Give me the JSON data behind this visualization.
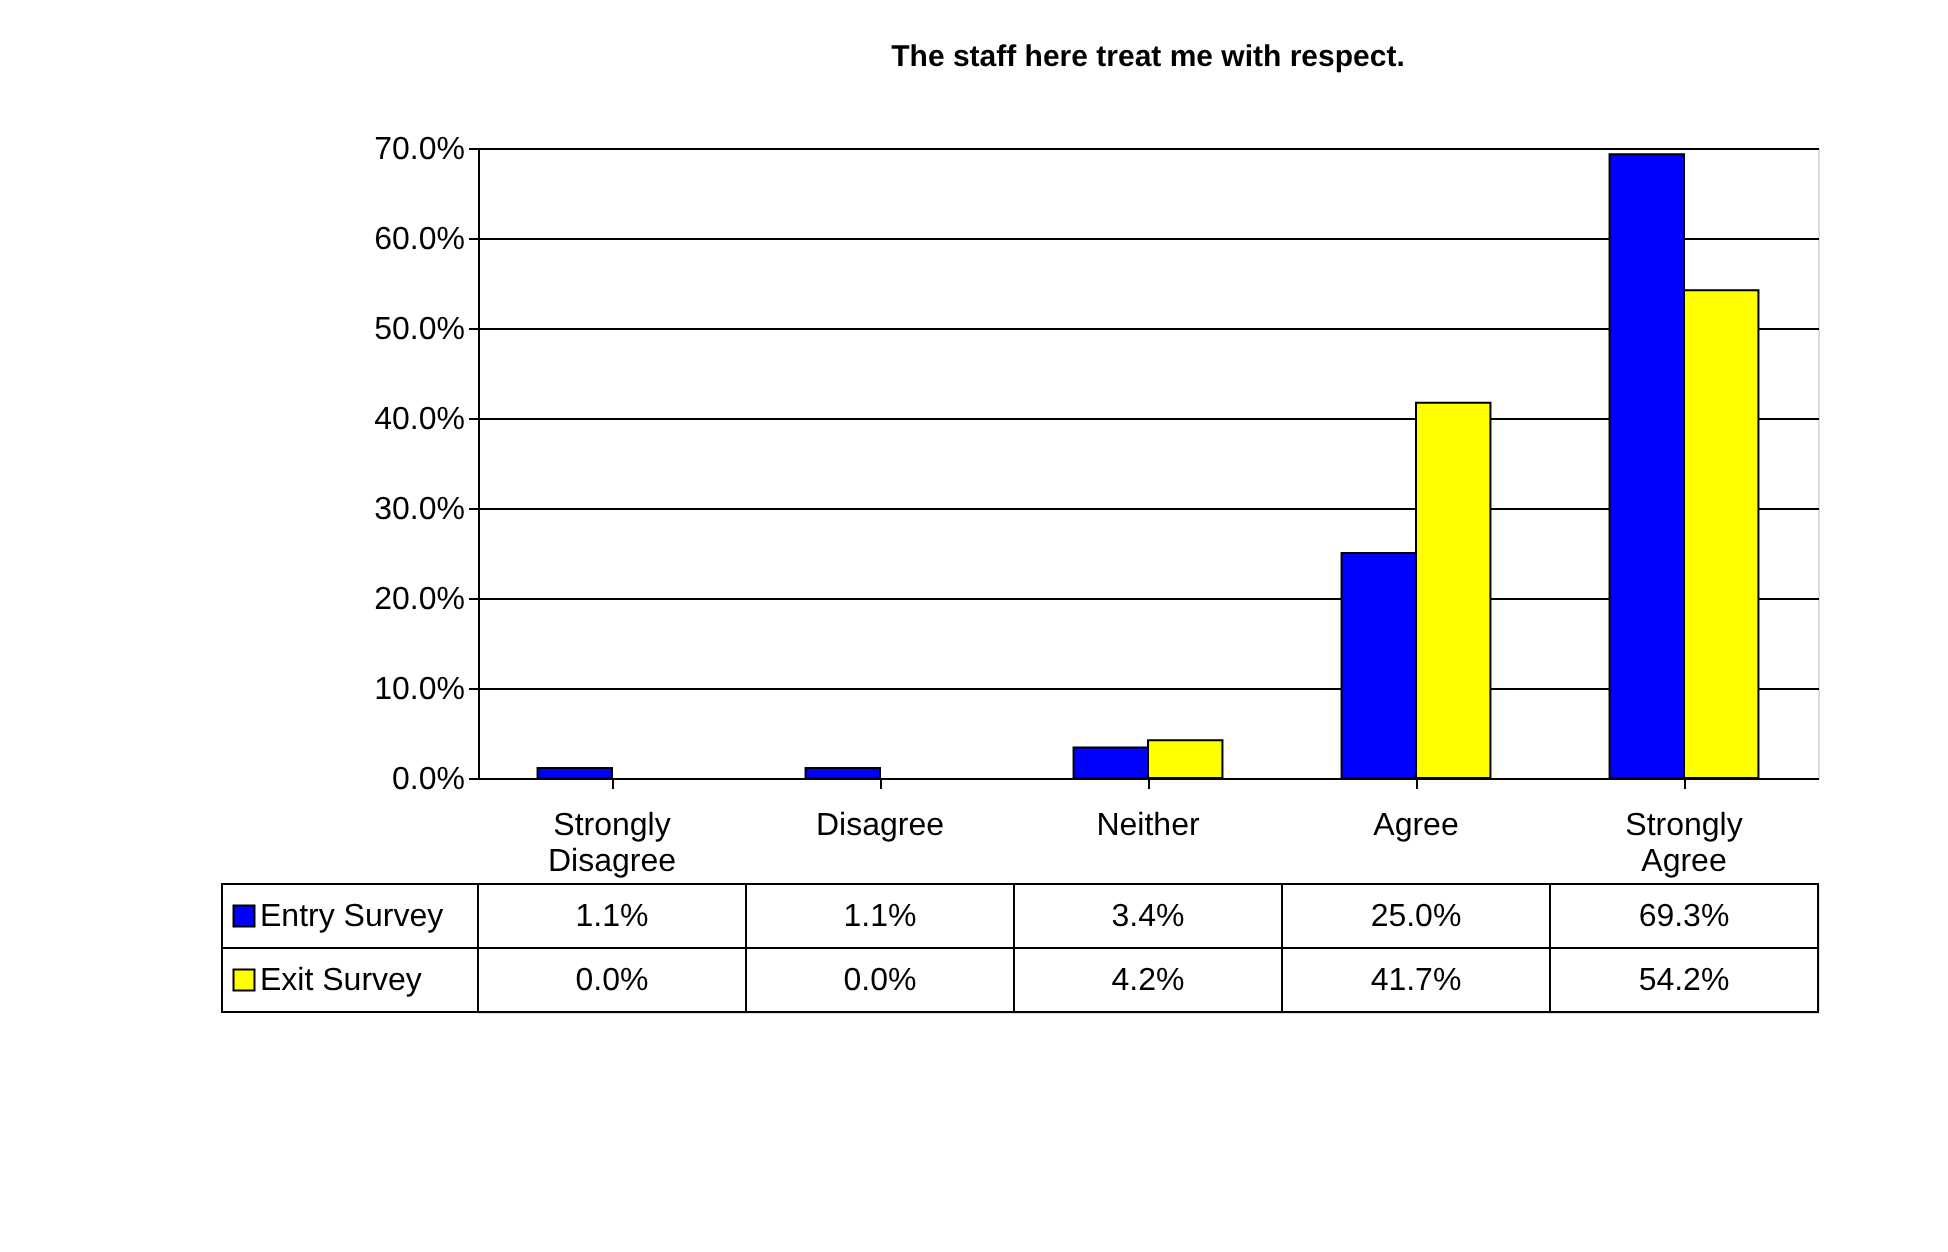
{
  "chart_data": {
    "type": "bar",
    "title": "The staff here treat me with respect.",
    "categories": [
      "Strongly Disagree",
      "Disagree",
      "Neither",
      "Agree",
      "Strongly Agree"
    ],
    "series": [
      {
        "name": "Entry Survey",
        "color": "#0000ff",
        "values": [
          1.1,
          1.1,
          3.4,
          25.0,
          69.3
        ],
        "value_labels": [
          "1.1%",
          "1.1%",
          "3.4%",
          "25.0%",
          "69.3%"
        ]
      },
      {
        "name": "Exit Survey",
        "color": "#ffff00",
        "values": [
          0.0,
          0.0,
          4.2,
          41.7,
          54.2
        ],
        "value_labels": [
          "0.0%",
          "0.0%",
          "4.2%",
          "41.7%",
          "54.2%"
        ]
      }
    ],
    "ylim": [
      0,
      70
    ],
    "yticks": [
      {
        "value": 0,
        "label": "0.0%"
      },
      {
        "value": 10,
        "label": "10.0%"
      },
      {
        "value": 20,
        "label": "20.0%"
      },
      {
        "value": 30,
        "label": "30.0%"
      },
      {
        "value": 40,
        "label": "40.0%"
      },
      {
        "value": 50,
        "label": "50.0%"
      },
      {
        "value": 60,
        "label": "60.0%"
      },
      {
        "value": 70,
        "label": "70.0%"
      }
    ],
    "grid": "y",
    "legend": "bottom"
  }
}
